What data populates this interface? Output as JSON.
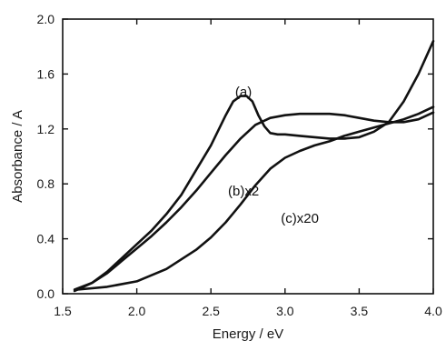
{
  "chart_data": {
    "type": "line",
    "xlabel": "Energy / eV",
    "ylabel": "Absorbance / A",
    "xlim": [
      1.5,
      4.0
    ],
    "ylim": [
      0.0,
      2.0
    ],
    "x_ticks": [
      "1.5",
      "2.0",
      "2.5",
      "3.0",
      "3.5",
      "4.0"
    ],
    "y_ticks": [
      "0.0",
      "0.4",
      "0.8",
      "1.2",
      "1.6",
      "2.0"
    ],
    "grid": false,
    "line_color": "#111111",
    "series": [
      {
        "name": "(a)",
        "label_at": [
          2.72,
          1.47
        ],
        "x": [
          1.58,
          1.7,
          1.8,
          1.9,
          2.0,
          2.1,
          2.2,
          2.3,
          2.4,
          2.5,
          2.6,
          2.65,
          2.7,
          2.74,
          2.78,
          2.82,
          2.86,
          2.9,
          2.95,
          3.0,
          3.1,
          3.2,
          3.3,
          3.4,
          3.5,
          3.6,
          3.7,
          3.8,
          3.9,
          4.0
        ],
        "y": [
          0.02,
          0.08,
          0.16,
          0.26,
          0.36,
          0.46,
          0.58,
          0.72,
          0.9,
          1.08,
          1.3,
          1.4,
          1.44,
          1.44,
          1.4,
          1.3,
          1.22,
          1.17,
          1.16,
          1.16,
          1.15,
          1.14,
          1.13,
          1.13,
          1.14,
          1.18,
          1.25,
          1.4,
          1.6,
          1.84
        ]
      },
      {
        "name": "(b)x2",
        "label_at": [
          2.72,
          0.75
        ],
        "x": [
          1.58,
          1.7,
          1.8,
          1.9,
          2.0,
          2.1,
          2.2,
          2.3,
          2.4,
          2.5,
          2.6,
          2.7,
          2.8,
          2.9,
          3.0,
          3.1,
          3.2,
          3.3,
          3.4,
          3.5,
          3.6,
          3.7,
          3.8,
          3.9,
          4.0
        ],
        "y": [
          0.03,
          0.08,
          0.15,
          0.24,
          0.33,
          0.42,
          0.52,
          0.63,
          0.75,
          0.88,
          1.01,
          1.13,
          1.23,
          1.28,
          1.3,
          1.31,
          1.31,
          1.31,
          1.3,
          1.28,
          1.26,
          1.25,
          1.25,
          1.27,
          1.32
        ]
      },
      {
        "name": "(c)x20",
        "label_at": [
          3.1,
          0.55
        ],
        "x": [
          1.6,
          1.8,
          2.0,
          2.2,
          2.4,
          2.5,
          2.6,
          2.7,
          2.8,
          2.9,
          3.0,
          3.1,
          3.2,
          3.3,
          3.4,
          3.5,
          3.6,
          3.7,
          3.8,
          3.9,
          4.0
        ],
        "y": [
          0.03,
          0.05,
          0.09,
          0.18,
          0.32,
          0.41,
          0.52,
          0.65,
          0.79,
          0.91,
          0.99,
          1.04,
          1.08,
          1.11,
          1.15,
          1.18,
          1.21,
          1.24,
          1.27,
          1.31,
          1.36
        ]
      }
    ]
  }
}
